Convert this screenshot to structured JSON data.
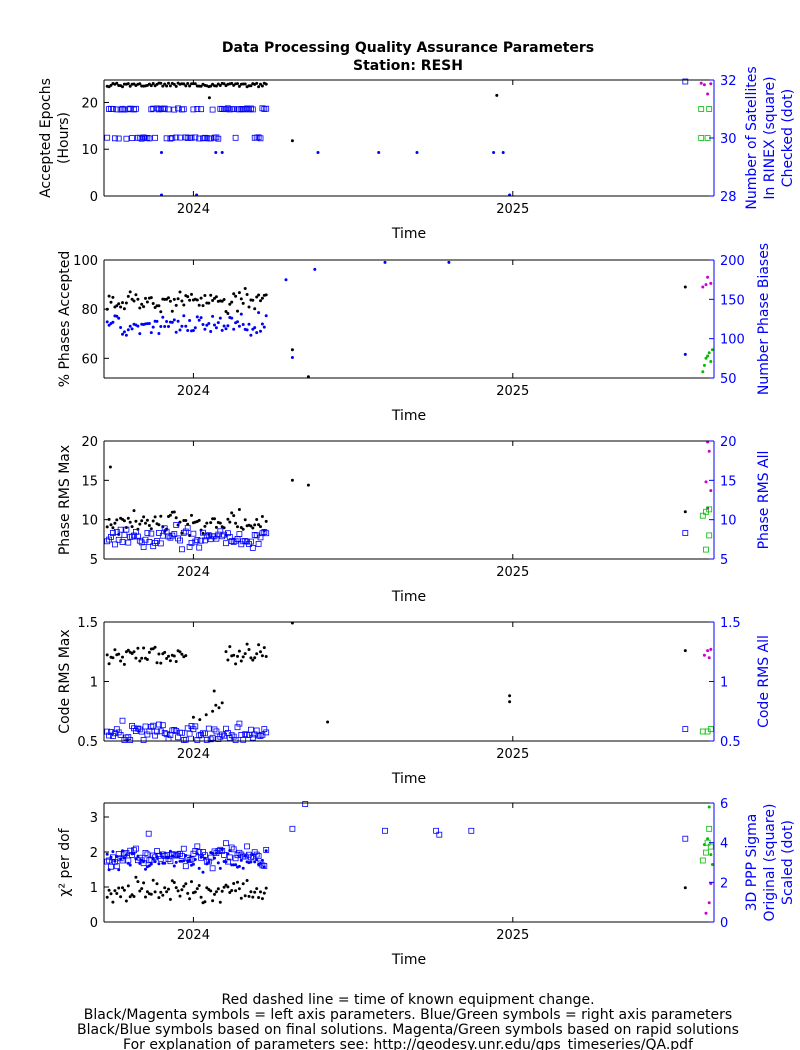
{
  "title": {
    "line1": "Data Processing Quality Assurance Parameters",
    "line2": "Station: RESH"
  },
  "footer": [
    "Red dashed line = time of known equipment change.",
    "Black/Magenta symbols = left axis parameters. Blue/Green symbols = right axis parameters",
    "Black/Blue symbols based on final solutions.  Magenta/Green symbols based on rapid solutions",
    "For explanation of parameters see: http://geodesy.unr.edu/gps_timeseries/QA.pdf"
  ],
  "colors": {
    "final_left": "#000000",
    "final_right": "#0000ff",
    "rapid_left": "#cc00cc",
    "rapid_right": "#00bb00",
    "right_axis": "#0000ff"
  },
  "chart_data": [
    {
      "type": "scatter",
      "xlabel": "Time",
      "xlim": [
        2023.72,
        2025.63
      ],
      "xticks": [
        {
          "value": 2024,
          "label": "2024"
        },
        {
          "value": 2025,
          "label": "2025"
        }
      ],
      "ylabel_left": [
        "Accepted Epochs",
        "(Hours)"
      ],
      "ylim_left": [
        0,
        24.8
      ],
      "yticks_left": [
        0,
        10,
        20
      ],
      "ylabel_right": [
        "Number of Satellites",
        "In RINEX (square)",
        "Checked (dot)"
      ],
      "ylim_right": [
        28,
        32
      ],
      "yticks_right": [
        28,
        30,
        32
      ],
      "series": [
        {
          "side": "left",
          "solution": "final",
          "marker": "dot",
          "gaps": [
            [
              2024.23,
              2024.3
            ],
            [
              2024.76,
              2024.78
            ]
          ],
          "y_levels": [
            24,
            23.5
          ],
          "points": [
            [
              2024.31,
              11.8
            ],
            [
              2024.05,
              21
            ],
            [
              2024.95,
              21.5
            ]
          ]
        },
        {
          "side": "right",
          "solution": "final",
          "marker": "square",
          "gaps": [
            [
              2024.23,
              2024.3
            ],
            [
              2024.78,
              2024.8
            ]
          ],
          "y_levels": [
            31.0,
            30.0
          ],
          "points": [
            [
              2025.54,
              31.95
            ]
          ]
        },
        {
          "side": "right",
          "solution": "final",
          "marker": "dot",
          "gaps": [],
          "y_levels": [],
          "points": [
            [
              2023.9,
              29.5
            ],
            [
              2023.9,
              28.0
            ],
            [
              2024.01,
              28.0
            ],
            [
              2024.07,
              29.5
            ],
            [
              2024.09,
              29.5
            ],
            [
              2024.39,
              29.5
            ],
            [
              2024.58,
              29.5
            ],
            [
              2024.7,
              29.5
            ],
            [
              2024.94,
              29.5
            ],
            [
              2024.97,
              29.5
            ],
            [
              2024.99,
              28.0
            ]
          ]
        },
        {
          "side": "left",
          "solution": "rapid",
          "marker": "dot",
          "gaps": [],
          "y_levels": [],
          "points": [
            [
              2025.59,
              24.1
            ],
            [
              2025.6,
              23.8
            ],
            [
              2025.61,
              21.8
            ],
            [
              2025.62,
              24
            ]
          ]
        },
        {
          "side": "right",
          "solution": "rapid",
          "marker": "square",
          "gaps": [],
          "y_levels": [],
          "points": [
            [
              2025.59,
              31.0
            ],
            [
              2025.615,
              31.0
            ],
            [
              2025.59,
              30.0
            ],
            [
              2025.61,
              30.0
            ]
          ]
        }
      ]
    },
    {
      "type": "scatter",
      "xlabel": "Time",
      "xlim": [
        2023.72,
        2025.63
      ],
      "xticks": [
        {
          "value": 2024,
          "label": "2024"
        },
        {
          "value": 2025,
          "label": "2025"
        }
      ],
      "ylabel_left": [
        "% Phases Accepted"
      ],
      "ylim_left": [
        52,
        100
      ],
      "yticks_left": [
        60,
        80,
        100
      ],
      "ylabel_right": [
        "Number Phase Biases"
      ],
      "ylim_right": [
        50,
        200
      ],
      "yticks_right": [
        50,
        100,
        150,
        200
      ],
      "series": [
        {
          "side": "left",
          "solution": "final",
          "marker": "dot",
          "gaps": [
            [
              2024.23,
              2024.29
            ],
            [
              2024.75,
              2024.77
            ]
          ],
          "y_levels": [
            83.5
          ],
          "points": [
            [
              2024.36,
              52.5
            ],
            [
              2024.31,
              63.5
            ],
            [
              2025.54,
              89
            ]
          ]
        },
        {
          "side": "right",
          "solution": "final",
          "marker": "dot",
          "gaps": [
            [
              2024.23,
              2024.29
            ],
            [
              2024.75,
              2024.77
            ]
          ],
          "y_levels": [
            118
          ],
          "points": [
            [
              2024.29,
              175
            ],
            [
              2024.31,
              76
            ],
            [
              2024.38,
              188
            ],
            [
              2024.6,
              197
            ],
            [
              2024.8,
              197
            ],
            [
              2025.54,
              80
            ]
          ]
        },
        {
          "side": "left",
          "solution": "rapid",
          "marker": "dot",
          "gaps": [],
          "y_levels": [],
          "points": [
            [
              2025.595,
              89
            ],
            [
              2025.605,
              90
            ],
            [
              2025.61,
              93
            ],
            [
              2025.62,
              90.5
            ]
          ]
        },
        {
          "side": "right",
          "solution": "rapid",
          "marker": "dot",
          "gaps": [],
          "y_levels": [],
          "points": [
            [
              2025.595,
              58
            ],
            [
              2025.6,
              66
            ],
            [
              2025.605,
              75
            ],
            [
              2025.61,
              78
            ],
            [
              2025.615,
              82
            ],
            [
              2025.62,
              71
            ],
            [
              2025.625,
              86
            ]
          ]
        }
      ]
    },
    {
      "type": "scatter",
      "xlabel": "Time",
      "xlim": [
        2023.72,
        2025.63
      ],
      "xticks": [
        {
          "value": 2024,
          "label": "2024"
        },
        {
          "value": 2025,
          "label": "2025"
        }
      ],
      "ylabel_left": [
        "Phase RMS Max"
      ],
      "ylim_left": [
        5,
        20
      ],
      "yticks_left": [
        5,
        10,
        15,
        20
      ],
      "ylabel_right": [
        "Phase RMS All"
      ],
      "ylim_right": [
        5,
        20
      ],
      "yticks_right": [
        5,
        10,
        15,
        20
      ],
      "series": [
        {
          "side": "left",
          "solution": "final",
          "marker": "dot",
          "gaps": [
            [
              2024.23,
              2024.29
            ],
            [
              2024.75,
              2024.77
            ]
          ],
          "y_levels": [
            9.6
          ],
          "points": [
            [
              2023.74,
              16.7
            ],
            [
              2024.31,
              15
            ],
            [
              2024.36,
              14.4
            ],
            [
              2025.54,
              11
            ]
          ]
        },
        {
          "side": "right",
          "solution": "final",
          "marker": "square",
          "gaps": [
            [
              2024.23,
              2024.29
            ],
            [
              2024.75,
              2024.77
            ]
          ],
          "y_levels": [
            7.7
          ],
          "points": [
            [
              2025.54,
              8.3
            ]
          ]
        },
        {
          "side": "left",
          "solution": "rapid",
          "marker": "dot",
          "gaps": [],
          "y_levels": [],
          "points": [
            [
              2025.61,
              20
            ],
            [
              2025.615,
              18.7
            ],
            [
              2025.605,
              14.8
            ],
            [
              2025.62,
              13.7
            ],
            [
              2025.61,
              11.5
            ]
          ]
        },
        {
          "side": "right",
          "solution": "rapid",
          "marker": "square",
          "gaps": [],
          "y_levels": [],
          "points": [
            [
              2025.595,
              10.5
            ],
            [
              2025.605,
              11
            ],
            [
              2025.615,
              11.3
            ],
            [
              2025.605,
              6.2
            ],
            [
              2025.615,
              8
            ]
          ]
        }
      ]
    },
    {
      "type": "scatter",
      "xlabel": "Time",
      "xlim": [
        2023.72,
        2025.63
      ],
      "xticks": [
        {
          "value": 2024,
          "label": "2024"
        },
        {
          "value": 2025,
          "label": "2025"
        }
      ],
      "ylabel_left": [
        "Code RMS Max"
      ],
      "ylim_left": [
        0.5,
        1.5
      ],
      "yticks_left": [
        0.5,
        1,
        1.5
      ],
      "ylabel_right": [
        "Code RMS All"
      ],
      "ylim_right": [
        0.5,
        1.5
      ],
      "yticks_right": [
        0.5,
        1,
        1.5
      ],
      "series": [
        {
          "side": "left",
          "solution": "final",
          "marker": "dot",
          "gaps": [
            [
              2023.98,
              2024.1
            ],
            [
              2024.23,
              2024.29
            ],
            [
              2024.75,
              2024.77
            ]
          ],
          "y_levels": [
            1.22
          ],
          "points": [
            [
              2024.0,
              0.7
            ],
            [
              2024.02,
              0.68
            ],
            [
              2024.04,
              0.72
            ],
            [
              2024.06,
              0.75
            ],
            [
              2024.07,
              0.8
            ],
            [
              2024.08,
              0.78
            ],
            [
              2024.09,
              0.82
            ],
            [
              2024.065,
              0.92
            ],
            [
              2024.31,
              1.5
            ],
            [
              2024.42,
              0.66
            ],
            [
              2024.99,
              0.88
            ],
            [
              2024.99,
              0.83
            ],
            [
              2025.54,
              1.26
            ]
          ]
        },
        {
          "side": "right",
          "solution": "final",
          "marker": "square",
          "gaps": [
            [
              2024.23,
              2024.29
            ],
            [
              2024.75,
              2024.77
            ]
          ],
          "y_levels": [
            0.57
          ],
          "points": [
            [
              2025.54,
              0.6
            ]
          ]
        },
        {
          "side": "left",
          "solution": "rapid",
          "marker": "dot",
          "gaps": [],
          "y_levels": [],
          "points": [
            [
              2025.6,
              1.22
            ],
            [
              2025.61,
              1.26
            ],
            [
              2025.62,
              1.27
            ],
            [
              2025.615,
              1.2
            ]
          ]
        },
        {
          "side": "right",
          "solution": "rapid",
          "marker": "square",
          "gaps": [],
          "y_levels": [],
          "points": [
            [
              2025.595,
              0.58
            ],
            [
              2025.61,
              0.58
            ],
            [
              2025.62,
              0.6
            ]
          ]
        }
      ]
    },
    {
      "type": "scatter",
      "xlabel": "Time",
      "xlim": [
        2023.72,
        2025.63
      ],
      "xticks": [
        {
          "value": 2024,
          "label": "2024"
        },
        {
          "value": 2025,
          "label": "2025"
        }
      ],
      "ylabel_left": [
        "χ² per dof"
      ],
      "ylim_left": [
        0,
        3.4
      ],
      "yticks_left": [
        0,
        1,
        2,
        3
      ],
      "ylabel_right": [
        "3D PPP Sigma",
        "Original (square)",
        "Scaled (dot)"
      ],
      "ylim_right": [
        0,
        6
      ],
      "yticks_right": [
        0,
        2,
        4,
        6
      ],
      "series": [
        {
          "side": "left",
          "solution": "final",
          "marker": "dot",
          "gaps": [
            [
              2024.23,
              2024.29
            ],
            [
              2024.75,
              2024.77
            ]
          ],
          "y_levels": [
            0.87
          ],
          "points": [
            [
              2025.54,
              0.98
            ]
          ]
        },
        {
          "side": "right",
          "solution": "final",
          "marker": "square",
          "gaps": [
            [
              2024.23,
              2024.29
            ],
            [
              2024.75,
              2024.77
            ]
          ],
          "y_levels": [
            3.3
          ],
          "points": [
            [
              2023.86,
              4.45
            ],
            [
              2024.31,
              4.7
            ],
            [
              2024.35,
              6.0
            ],
            [
              2024.6,
              4.6
            ],
            [
              2024.76,
              4.6
            ],
            [
              2024.77,
              4.4
            ],
            [
              2024.87,
              4.6
            ],
            [
              2025.54,
              4.2
            ]
          ]
        },
        {
          "side": "right",
          "solution": "final",
          "marker": "dot",
          "gaps": [
            [
              2024.23,
              2024.29
            ],
            [
              2024.75,
              2024.77
            ]
          ],
          "y_levels": [
            3.1
          ],
          "points": []
        },
        {
          "side": "left",
          "solution": "rapid",
          "marker": "dot",
          "gaps": [],
          "y_levels": [],
          "points": [
            [
              2025.605,
              0.25
            ],
            [
              2025.615,
              0.55
            ],
            [
              2025.62,
              1.1
            ]
          ]
        },
        {
          "side": "right",
          "solution": "rapid",
          "marker": "square",
          "gaps": [],
          "y_levels": [],
          "points": [
            [
              2025.595,
              3.1
            ],
            [
              2025.605,
              3.5
            ],
            [
              2025.61,
              4.0
            ],
            [
              2025.615,
              4.7
            ],
            [
              2025.62,
              3.8
            ]
          ]
        },
        {
          "side": "right",
          "solution": "rapid",
          "marker": "dot",
          "gaps": [],
          "y_levels": [],
          "points": [
            [
              2025.6,
              3.9
            ],
            [
              2025.61,
              4.2
            ],
            [
              2025.615,
              5.8
            ],
            [
              2025.62,
              3.4
            ],
            [
              2025.625,
              2.9
            ]
          ]
        }
      ]
    }
  ]
}
